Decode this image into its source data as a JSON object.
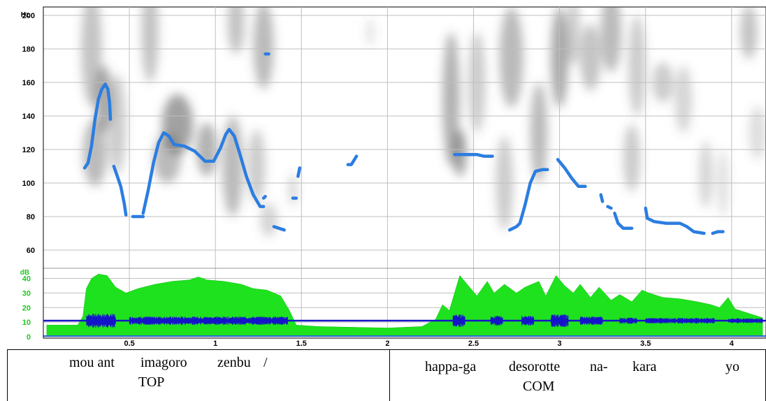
{
  "chart_data": {
    "type": "line",
    "title": "",
    "pitch_axis": {
      "unit": "Hz",
      "ylim": [
        50,
        205
      ],
      "ticks": [
        60,
        80,
        100,
        120,
        140,
        160,
        180,
        200
      ]
    },
    "intensity_axis": {
      "unit": "dB",
      "ylim": [
        0,
        46
      ],
      "ticks": [
        0,
        10,
        20,
        30,
        40
      ]
    },
    "x_axis": {
      "unit": "s",
      "xlim": [
        0,
        4.2
      ],
      "ticks": [
        0.5,
        1,
        1.5,
        2,
        2.5,
        3,
        3.5,
        4
      ],
      "tick_labels": [
        "0.5",
        "1",
        "1.5",
        "2",
        "2.5",
        "3",
        "3.5",
        "4"
      ]
    },
    "grid": true,
    "colors": {
      "pitch": "#2b7de0",
      "intensity": "#1ee21e",
      "waveform": "#1414c8",
      "spectrogram": "#555555",
      "grid": "#bfbfbf"
    },
    "series": [
      {
        "kind": "pitch",
        "segments": [
          [
            [
              0.24,
              109
            ],
            [
              0.26,
              112
            ],
            [
              0.28,
              122
            ],
            [
              0.3,
              138
            ],
            [
              0.32,
              150
            ],
            [
              0.34,
              156
            ],
            [
              0.36,
              159
            ],
            [
              0.375,
              156
            ],
            [
              0.385,
              148
            ],
            [
              0.39,
              138
            ]
          ],
          [
            [
              0.41,
              110
            ],
            [
              0.43,
              104
            ],
            [
              0.45,
              98
            ],
            [
              0.47,
              88
            ],
            [
              0.48,
              81
            ]
          ],
          [
            [
              0.52,
              80
            ],
            [
              0.56,
              80
            ],
            [
              0.58,
              80
            ]
          ],
          [
            [
              0.58,
              82
            ],
            [
              0.61,
              96
            ],
            [
              0.64,
              112
            ],
            [
              0.67,
              124
            ],
            [
              0.7,
              130
            ],
            [
              0.73,
              128
            ],
            [
              0.76,
              123
            ],
            [
              0.82,
              122
            ],
            [
              0.88,
              119
            ],
            [
              0.94,
              113
            ],
            [
              0.99,
              113
            ],
            [
              1.03,
              121
            ],
            [
              1.06,
              129
            ],
            [
              1.08,
              132
            ],
            [
              1.11,
              128
            ],
            [
              1.14,
              118
            ],
            [
              1.18,
              104
            ],
            [
              1.22,
              93
            ],
            [
              1.26,
              86
            ],
            [
              1.28,
              86
            ]
          ],
          [
            [
              1.28,
              91
            ],
            [
              1.29,
              92
            ]
          ],
          [
            [
              1.29,
              177
            ],
            [
              1.31,
              177
            ]
          ],
          [
            [
              1.34,
              74
            ],
            [
              1.37,
              73
            ],
            [
              1.4,
              72
            ]
          ],
          [
            [
              1.45,
              91
            ],
            [
              1.47,
              91
            ]
          ],
          [
            [
              1.48,
              104
            ],
            [
              1.49,
              109
            ]
          ],
          [
            [
              1.77,
              111
            ],
            [
              1.79,
              111
            ],
            [
              1.82,
              116
            ]
          ],
          [
            [
              2.39,
              117
            ],
            [
              2.47,
              117
            ],
            [
              2.52,
              117
            ],
            [
              2.56,
              116
            ],
            [
              2.61,
              116
            ]
          ],
          [
            [
              2.71,
              72
            ],
            [
              2.75,
              74
            ],
            [
              2.77,
              76
            ],
            [
              2.8,
              87
            ],
            [
              2.83,
              100
            ],
            [
              2.86,
              107
            ],
            [
              2.9,
              108
            ],
            [
              2.93,
              108
            ]
          ],
          [
            [
              2.99,
              114
            ],
            [
              3.03,
              109
            ],
            [
              3.07,
              103
            ],
            [
              3.11,
              98
            ],
            [
              3.15,
              98
            ]
          ],
          [
            [
              3.24,
              93
            ],
            [
              3.25,
              89
            ]
          ],
          [
            [
              3.28,
              86
            ],
            [
              3.3,
              85
            ]
          ],
          [
            [
              3.32,
              82
            ],
            [
              3.34,
              76
            ],
            [
              3.37,
              73
            ],
            [
              3.42,
              73
            ]
          ],
          [
            [
              3.5,
              85
            ],
            [
              3.51,
              79
            ],
            [
              3.55,
              77
            ],
            [
              3.62,
              76
            ],
            [
              3.7,
              76
            ],
            [
              3.74,
              74
            ],
            [
              3.78,
              71
            ],
            [
              3.84,
              70
            ]
          ],
          [
            [
              3.89,
              70
            ],
            [
              3.92,
              71
            ],
            [
              3.95,
              71
            ]
          ]
        ]
      },
      {
        "kind": "intensity",
        "points": [
          [
            0.02,
            8
          ],
          [
            0.2,
            8
          ],
          [
            0.23,
            14
          ],
          [
            0.25,
            33
          ],
          [
            0.28,
            40
          ],
          [
            0.32,
            43
          ],
          [
            0.37,
            42
          ],
          [
            0.42,
            34
          ],
          [
            0.48,
            30
          ],
          [
            0.55,
            33
          ],
          [
            0.65,
            36
          ],
          [
            0.75,
            38
          ],
          [
            0.85,
            39
          ],
          [
            0.9,
            41
          ],
          [
            0.95,
            39
          ],
          [
            1.05,
            38
          ],
          [
            1.15,
            36
          ],
          [
            1.22,
            33
          ],
          [
            1.3,
            32
          ],
          [
            1.38,
            28
          ],
          [
            1.43,
            18
          ],
          [
            1.47,
            8
          ],
          [
            1.6,
            7
          ],
          [
            2.0,
            6
          ],
          [
            2.2,
            7
          ],
          [
            2.28,
            12
          ],
          [
            2.32,
            22
          ],
          [
            2.36,
            18
          ],
          [
            2.42,
            42
          ],
          [
            2.47,
            35
          ],
          [
            2.52,
            28
          ],
          [
            2.58,
            38
          ],
          [
            2.62,
            30
          ],
          [
            2.68,
            36
          ],
          [
            2.75,
            30
          ],
          [
            2.8,
            34
          ],
          [
            2.88,
            38
          ],
          [
            2.92,
            28
          ],
          [
            2.98,
            42
          ],
          [
            3.03,
            35
          ],
          [
            3.08,
            30
          ],
          [
            3.12,
            36
          ],
          [
            3.18,
            27
          ],
          [
            3.23,
            34
          ],
          [
            3.3,
            25
          ],
          [
            3.35,
            29
          ],
          [
            3.42,
            24
          ],
          [
            3.48,
            32
          ],
          [
            3.52,
            30
          ],
          [
            3.6,
            27
          ],
          [
            3.7,
            26
          ],
          [
            3.8,
            24
          ],
          [
            3.88,
            22
          ],
          [
            3.93,
            20
          ],
          [
            3.98,
            27
          ],
          [
            4.02,
            19
          ],
          [
            4.1,
            16
          ],
          [
            4.18,
            13
          ]
        ]
      }
    ],
    "waveform_bursts": [
      [
        0.25,
        0.42,
        1
      ],
      [
        0.5,
        1.42,
        0.6
      ],
      [
        2.38,
        2.45,
        0.9
      ],
      [
        2.6,
        2.67,
        0.7
      ],
      [
        2.78,
        2.85,
        0.7
      ],
      [
        2.95,
        3.05,
        0.9
      ],
      [
        3.12,
        3.25,
        0.6
      ],
      [
        3.35,
        3.45,
        0.45
      ],
      [
        3.5,
        3.9,
        0.4
      ],
      [
        3.98,
        4.18,
        0.35
      ]
    ],
    "spectrogram_blobs": [
      [
        0.28,
        180,
        0.06,
        34,
        0.35
      ],
      [
        0.35,
        150,
        0.05,
        20,
        0.5
      ],
      [
        0.3,
        118,
        0.07,
        20,
        0.4
      ],
      [
        0.43,
        135,
        0.05,
        30,
        0.3
      ],
      [
        0.62,
        190,
        0.05,
        30,
        0.35
      ],
      [
        0.78,
        135,
        0.09,
        18,
        0.55
      ],
      [
        0.72,
        115,
        0.08,
        15,
        0.4
      ],
      [
        0.95,
        120,
        0.06,
        16,
        0.45
      ],
      [
        1.1,
        110,
        0.06,
        30,
        0.4
      ],
      [
        1.12,
        195,
        0.05,
        18,
        0.35
      ],
      [
        1.28,
        182,
        0.06,
        26,
        0.4
      ],
      [
        1.24,
        110,
        0.05,
        22,
        0.3
      ],
      [
        1.31,
        78,
        0.05,
        10,
        0.25
      ],
      [
        1.45,
        96,
        0.02,
        10,
        0.3
      ],
      [
        1.9,
        190,
        0.02,
        8,
        0.2
      ],
      [
        2.37,
        150,
        0.05,
        40,
        0.45
      ],
      [
        2.42,
        118,
        0.04,
        14,
        0.55
      ],
      [
        2.52,
        160,
        0.05,
        30,
        0.3
      ],
      [
        2.72,
        175,
        0.07,
        30,
        0.4
      ],
      [
        2.68,
        100,
        0.05,
        28,
        0.3
      ],
      [
        2.88,
        130,
        0.05,
        30,
        0.4
      ],
      [
        3.0,
        175,
        0.05,
        30,
        0.5
      ],
      [
        3.08,
        190,
        0.04,
        20,
        0.3
      ],
      [
        3.18,
        175,
        0.06,
        20,
        0.35
      ],
      [
        3.3,
        190,
        0.06,
        24,
        0.4
      ],
      [
        3.45,
        170,
        0.05,
        30,
        0.3
      ],
      [
        3.6,
        160,
        0.06,
        12,
        0.3
      ],
      [
        3.72,
        150,
        0.05,
        20,
        0.25
      ],
      [
        3.42,
        115,
        0.05,
        20,
        0.3
      ],
      [
        3.85,
        105,
        0.04,
        20,
        0.25
      ],
      [
        3.95,
        100,
        0.03,
        20,
        0.2
      ],
      [
        4.1,
        190,
        0.05,
        16,
        0.35
      ],
      [
        4.15,
        130,
        0.05,
        16,
        0.2
      ]
    ]
  },
  "gloss": {
    "left": {
      "words": [
        "mou ant",
        "imagoro",
        "zenbu",
        "/"
      ],
      "tag": "TOP"
    },
    "right": {
      "words": [
        "happa-ga",
        "desorotte",
        "na-",
        "kara",
        "yo"
      ],
      "tag": "COM"
    }
  }
}
